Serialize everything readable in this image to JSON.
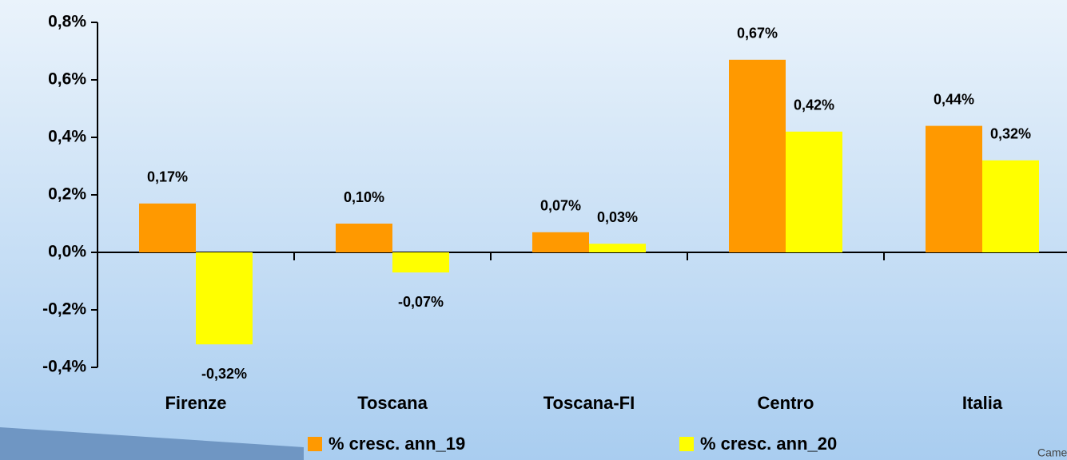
{
  "chart_data": {
    "type": "bar",
    "categories": [
      "Firenze",
      "Toscana",
      "Toscana-FI",
      "Centro",
      "Italia"
    ],
    "series": [
      {
        "name": "% cresc. ann_19",
        "color": "#ff9900",
        "values": [
          0.17,
          0.1,
          0.07,
          0.67,
          0.44
        ],
        "value_labels": [
          "0,17%",
          "0,10%",
          "0,07%",
          "0,67%",
          "0,44%"
        ]
      },
      {
        "name": "% cresc. ann_20",
        "color": "#ffff00",
        "values": [
          -0.32,
          -0.07,
          0.03,
          0.42,
          0.32
        ],
        "value_labels": [
          "-0,32%",
          "-0,07%",
          "0,03%",
          "0,42%",
          "0,32%"
        ]
      }
    ],
    "ylim": [
      -0.4,
      0.8
    ],
    "yticks": [
      {
        "value": -0.4,
        "label": "-0,4%"
      },
      {
        "value": -0.2,
        "label": "-0,2%"
      },
      {
        "value": 0,
        "label": "0,0%"
      },
      {
        "value": 0.2,
        "label": "0,2%"
      },
      {
        "value": 0.4,
        "label": "0,4%"
      },
      {
        "value": 0.6,
        "label": "0,6%"
      },
      {
        "value": 0.8,
        "label": "0,8%"
      }
    ],
    "legend": "bottom"
  },
  "logo": "Came"
}
